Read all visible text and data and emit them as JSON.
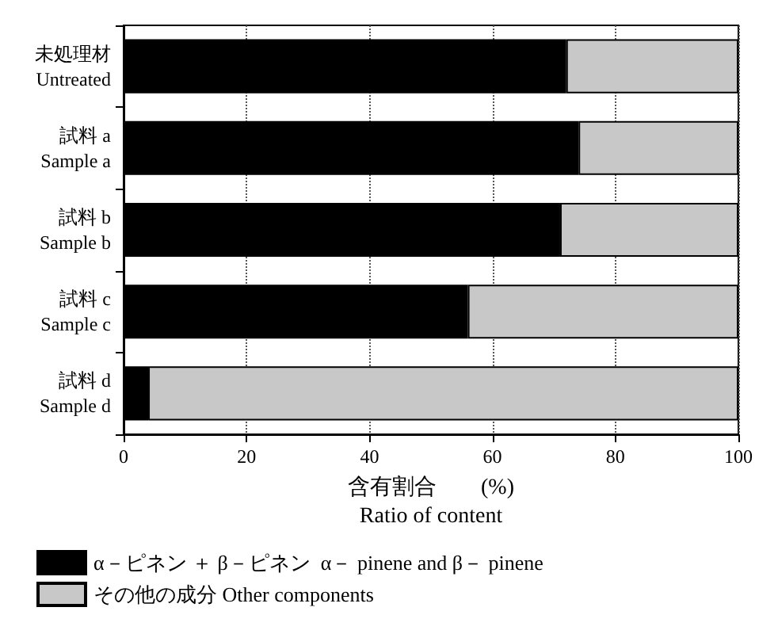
{
  "chart_data": {
    "type": "bar",
    "orientation": "horizontal",
    "stacked": true,
    "categories": [
      "未処理材\nUntreated",
      "試料 a\nSample a",
      "試料 b\nSample b",
      "試料 c\nSample c",
      "試料 d\nSample d"
    ],
    "series": [
      {
        "name": "α－ピネン ＋ β－ピネン  α－ pinene and β－ pinene",
        "color": "#000000",
        "values": [
          72,
          74,
          71,
          56,
          4
        ]
      },
      {
        "name": "その他の成分 Other components",
        "color": "#c8c8c8",
        "values": [
          28,
          26,
          29,
          44,
          96
        ]
      }
    ],
    "xlabel": "含有割合　　(%)\nRatio of content",
    "xlim": [
      0,
      100
    ],
    "xticks": [
      0,
      20,
      40,
      60,
      80,
      100
    ],
    "grid": "x",
    "legend": "bottom left"
  }
}
